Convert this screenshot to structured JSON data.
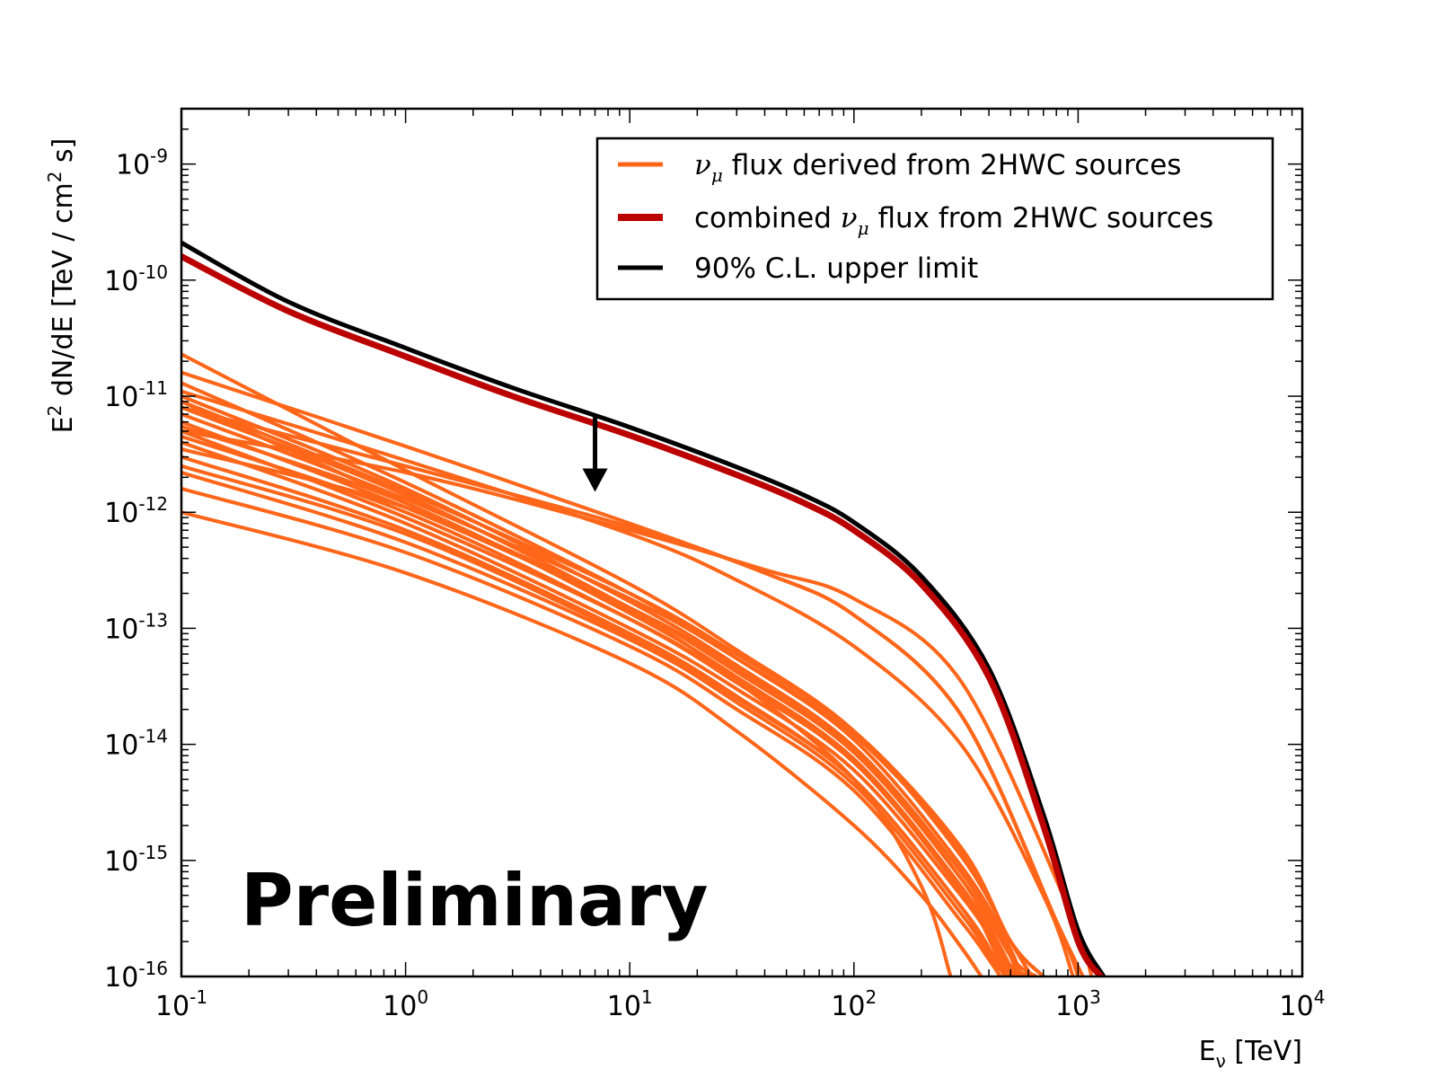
{
  "chart_data": {
    "type": "line",
    "x_scale": "log",
    "y_scale": "log",
    "xlim": [
      0.1,
      10000
    ],
    "ylim": [
      1e-16,
      3e-09
    ],
    "xlabel": {
      "base": "E",
      "sub": "ν",
      "suffix": " [TeV]"
    },
    "ylabel": {
      "pre": "E",
      "sup": "2",
      "mid": "  dN/dE [TeV / cm",
      "sup2": "2",
      "post": "  s]"
    },
    "x_ticks": [
      {
        "value": 0.1,
        "base": "10",
        "exp": "-1"
      },
      {
        "value": 1,
        "base": "10",
        "exp": "0"
      },
      {
        "value": 10,
        "base": "10",
        "exp": "1"
      },
      {
        "value": 100,
        "base": "10",
        "exp": "2"
      },
      {
        "value": 1000,
        "base": "10",
        "exp": "3"
      },
      {
        "value": 10000,
        "base": "10",
        "exp": "4"
      }
    ],
    "y_ticks": [
      {
        "value": 1e-16,
        "base": "10",
        "exp": "-16"
      },
      {
        "value": 1e-15,
        "base": "10",
        "exp": "-15"
      },
      {
        "value": 1e-14,
        "base": "10",
        "exp": "-14"
      },
      {
        "value": 1e-13,
        "base": "10",
        "exp": "-13"
      },
      {
        "value": 1e-12,
        "base": "10",
        "exp": "-12"
      },
      {
        "value": 1e-11,
        "base": "10",
        "exp": "-11"
      },
      {
        "value": 1e-10,
        "base": "10",
        "exp": "-10"
      },
      {
        "value": 1e-09,
        "base": "10",
        "exp": "-9"
      }
    ],
    "legend": {
      "position": "top-right",
      "entries": [
        {
          "parts": [
            "",
            "ν",
            "μ",
            "  flux derived from 2HWC sources"
          ],
          "color": "#ff6619",
          "width": 5
        },
        {
          "parts": [
            "combined ",
            "ν",
            "μ",
            "  flux from 2HWC sources"
          ],
          "color": "#bb0000",
          "width": 8
        },
        {
          "parts": [
            "90% C.L. upper limit",
            "",
            "",
            ""
          ],
          "color": "#000000",
          "width": 5
        }
      ]
    },
    "annotation": {
      "text": "Preliminary"
    },
    "upper_limit_arrow": {
      "x": 7,
      "y_from": 7e-12,
      "y_to": 1.5e-12
    },
    "series": [
      {
        "role": "upper-limit",
        "color": "#000000",
        "width": 5,
        "x": [
          0.1,
          0.3,
          1,
          3,
          10,
          30,
          60,
          100,
          200,
          400,
          700,
          1000,
          1300
        ],
        "y": [
          2.1e-10,
          6.5e-11,
          2.6e-11,
          1.18e-11,
          5.4e-12,
          2.45e-12,
          1.4e-12,
          8.2e-13,
          2.8e-13,
          4.5e-14,
          2.5e-15,
          2.5e-16,
          1e-16
        ]
      },
      {
        "role": "combined",
        "color": "#bb0000",
        "width": 7,
        "x": [
          0.1,
          0.3,
          1,
          3,
          10,
          30,
          60,
          100,
          200,
          400,
          700,
          1000,
          1260
        ],
        "y": [
          1.6e-10,
          5.4e-11,
          2.2e-11,
          1e-11,
          4.6e-12,
          2.1e-12,
          1.2e-12,
          7e-13,
          2.4e-13,
          3.8e-14,
          2e-15,
          2e-16,
          1e-16
        ]
      },
      {
        "role": "source",
        "color": "#ff6619",
        "width": 4,
        "x": [
          0.1,
          1,
          10,
          40,
          100,
          300,
          800,
          1050
        ],
        "y": [
          1.6e-11,
          3.7e-12,
          8e-13,
          3e-13,
          1.3e-13,
          1.8e-14,
          3e-16,
          1e-16
        ]
      },
      {
        "role": "source",
        "color": "#ff6619",
        "width": 4,
        "x": [
          0.1,
          1,
          10,
          40,
          100,
          300,
          900,
          1150
        ],
        "y": [
          5e-12,
          2.2e-12,
          7e-13,
          3.2e-13,
          1.8e-13,
          3.5e-14,
          4e-16,
          1e-16
        ]
      },
      {
        "role": "source",
        "color": "#ff6619",
        "width": 4,
        "x": [
          0.1,
          1,
          10,
          30,
          100,
          300,
          700,
          950
        ],
        "y": [
          1.1e-11,
          2.8e-12,
          6.5e-13,
          2.6e-13,
          7e-14,
          1e-14,
          5e-16,
          1e-16
        ]
      },
      {
        "role": "source",
        "color": "#ff6619",
        "width": 4,
        "x": [
          0.1,
          1,
          10,
          30,
          100,
          300,
          500,
          700
        ],
        "y": [
          9e-12,
          1.5e-12,
          2e-13,
          6e-14,
          1.3e-14,
          1.3e-15,
          2e-16,
          1e-16
        ]
      },
      {
        "role": "source",
        "color": "#ff6619",
        "width": 4,
        "x": [
          0.1,
          1,
          10,
          30,
          100,
          300,
          500,
          700
        ],
        "y": [
          7e-12,
          1.3e-12,
          1.8e-13,
          5.5e-14,
          1.2e-14,
          1.2e-15,
          2e-16,
          1e-16
        ]
      },
      {
        "role": "source",
        "color": "#ff6619",
        "width": 4,
        "x": [
          0.1,
          1,
          10,
          30,
          100,
          300,
          500,
          650
        ],
        "y": [
          6e-12,
          1.1e-12,
          1.5e-13,
          4.5e-14,
          9e-15,
          8e-16,
          1.5e-16,
          1e-16
        ]
      },
      {
        "role": "source",
        "color": "#ff6619",
        "width": 4,
        "x": [
          0.1,
          1,
          10,
          30,
          100,
          300,
          450,
          600
        ],
        "y": [
          5e-12,
          9e-13,
          1.2e-13,
          3.5e-14,
          7e-15,
          6e-16,
          1.5e-16,
          1e-16
        ]
      },
      {
        "role": "source",
        "color": "#ff6619",
        "width": 4,
        "x": [
          0.1,
          1,
          10,
          30,
          100,
          300,
          450,
          550
        ],
        "y": [
          4e-12,
          8e-13,
          1e-13,
          3e-14,
          6e-15,
          5e-16,
          1.6e-16,
          1e-16
        ]
      },
      {
        "role": "source",
        "color": "#ff6619",
        "width": 4,
        "x": [
          0.1,
          1,
          10,
          30,
          100,
          300,
          400,
          500
        ],
        "y": [
          3e-12,
          7e-13,
          9e-14,
          2.6e-14,
          5e-15,
          4e-16,
          1.6e-16,
          1e-16
        ]
      },
      {
        "role": "source",
        "color": "#ff6619",
        "width": 4,
        "x": [
          0.1,
          1,
          10,
          30,
          100,
          300,
          400,
          480
        ],
        "y": [
          2.2e-12,
          5.5e-13,
          8e-14,
          2.3e-14,
          4.5e-15,
          3.5e-16,
          1.5e-16,
          1e-16
        ]
      },
      {
        "role": "source",
        "color": "#ff6619",
        "width": 4,
        "x": [
          0.1,
          1,
          10,
          30,
          100,
          300,
          400,
          450
        ],
        "y": [
          1.6e-12,
          4.5e-13,
          7e-14,
          2e-14,
          4e-15,
          3e-16,
          1.4e-16,
          1e-16
        ]
      },
      {
        "role": "source",
        "color": "#ff6619",
        "width": 4,
        "x": [
          0.1,
          1,
          10,
          30,
          100,
          200,
          300,
          370
        ],
        "y": [
          1e-12,
          3e-13,
          5e-14,
          1.3e-14,
          2e-15,
          5e-16,
          1.8e-16,
          1e-16
        ]
      },
      {
        "role": "source",
        "color": "#ff6619",
        "width": 4,
        "x": [
          0.1,
          1,
          10,
          30,
          100,
          200,
          270
        ],
        "y": [
          9e-12,
          1.2e-12,
          1.4e-13,
          3.5e-14,
          5e-15,
          6e-16,
          1e-16
        ]
      },
      {
        "role": "source",
        "color": "#ff6619",
        "width": 4,
        "x": [
          0.1,
          1,
          10,
          40,
          100,
          300,
          800,
          1000
        ],
        "y": [
          8e-12,
          2.5e-12,
          7.5e-13,
          3e-13,
          1.3e-13,
          1.8e-14,
          3e-16,
          1e-16
        ]
      },
      {
        "role": "source",
        "color": "#ff6619",
        "width": 4,
        "x": [
          0.1,
          1,
          10,
          30,
          100,
          300,
          500,
          620
        ],
        "y": [
          2.3e-11,
          2.3e-12,
          2.4e-13,
          6.5e-14,
          1.3e-14,
          1.1e-15,
          2e-16,
          1e-16
        ]
      },
      {
        "role": "source",
        "color": "#ff6619",
        "width": 4,
        "x": [
          0.1,
          1,
          10,
          30,
          100,
          300,
          480,
          560
        ],
        "y": [
          1.3e-11,
          1.8e-12,
          2e-13,
          5.5e-14,
          1.1e-14,
          9e-16,
          2e-16,
          1e-16
        ]
      },
      {
        "role": "source",
        "color": "#ff6619",
        "width": 4,
        "x": [
          0.1,
          1,
          10,
          30,
          100,
          300,
          470,
          540
        ],
        "y": [
          1e-11,
          1.6e-12,
          1.7e-13,
          4.8e-14,
          9.5e-15,
          8e-16,
          1.9e-16,
          1e-16
        ]
      },
      {
        "role": "source",
        "color": "#ff6619",
        "width": 4,
        "x": [
          0.1,
          1,
          10,
          30,
          100,
          300,
          450,
          520
        ],
        "y": [
          8e-12,
          1.4e-12,
          1.5e-13,
          4.2e-14,
          8.5e-15,
          7e-16,
          1.8e-16,
          1e-16
        ]
      },
      {
        "role": "source",
        "color": "#ff6619",
        "width": 4,
        "x": [
          0.1,
          1,
          10,
          30,
          100,
          300,
          440,
          500
        ],
        "y": [
          5.5e-12,
          1.2e-12,
          1.35e-13,
          3.8e-14,
          7.5e-15,
          6e-16,
          1.7e-16,
          1e-16
        ]
      },
      {
        "role": "source",
        "color": "#ff6619",
        "width": 4,
        "x": [
          0.1,
          1,
          10,
          30,
          100,
          300,
          430,
          490
        ],
        "y": [
          4.5e-12,
          1e-12,
          1.2e-13,
          3.4e-14,
          7e-15,
          5.5e-16,
          1.6e-16,
          1e-16
        ]
      },
      {
        "role": "source",
        "color": "#ff6619",
        "width": 4,
        "x": [
          0.1,
          1,
          10,
          30,
          100,
          300,
          420,
          470
        ],
        "y": [
          2.5e-12,
          6.5e-13,
          8.5e-14,
          2.5e-14,
          5e-15,
          4e-16,
          1.5e-16,
          1e-16
        ]
      },
      {
        "role": "source",
        "color": "#ff6619",
        "width": 4,
        "x": [
          0.1,
          1,
          10,
          30,
          100,
          300,
          430,
          530
        ],
        "y": [
          3.5e-12,
          1.1e-12,
          1.5e-13,
          4.5e-14,
          9e-15,
          7e-16,
          2e-16,
          1e-16
        ]
      }
    ]
  }
}
